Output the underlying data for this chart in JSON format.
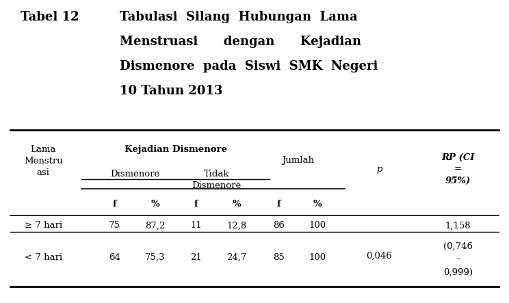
{
  "bg_color": "#ffffff",
  "text_color": "#000000",
  "line_color": "#000000",
  "title_num": "Tabel 12",
  "title_body_line1": "Tabulasi  Silang  Hubungan  Lama",
  "title_body_line2": "Menstruasi      dengan      Kejadian",
  "title_body_line3": "Dismenore  pada  Siswi  SMK  Negeri",
  "title_body_line4": "10 Tahun 2013",
  "col_label": "Lama\nMenstru\nasi",
  "kejadian_header": "Kejadian Dismenore",
  "dis_header": "Dismenore",
  "tidak_header": "Tidak\nDismenore",
  "jumlah_header": "Jumlah",
  "p_header": "p",
  "rp_header": "RP (CI\n=\n95%)",
  "f_label": "f",
  "pct_label": "%",
  "row1_label": "≥ 7 hari",
  "row1_dis_f": "75",
  "row1_dis_pct": "87,2",
  "row1_tidak_f": "11",
  "row1_tidak_pct": "12,8",
  "row1_jml_f": "86",
  "row1_jml_pct": "100",
  "row1_p": "",
  "row1_rp": "1,158",
  "row2_label": "< 7 hari",
  "row2_dis_f": "64",
  "row2_dis_pct": "75,3",
  "row2_tidak_f": "21",
  "row2_tidak_pct": "24,7",
  "row2_jml_f": "85",
  "row2_jml_pct": "100",
  "row2_p": "0,046",
  "row2_rp": "(0,746\n–\n0,999)"
}
